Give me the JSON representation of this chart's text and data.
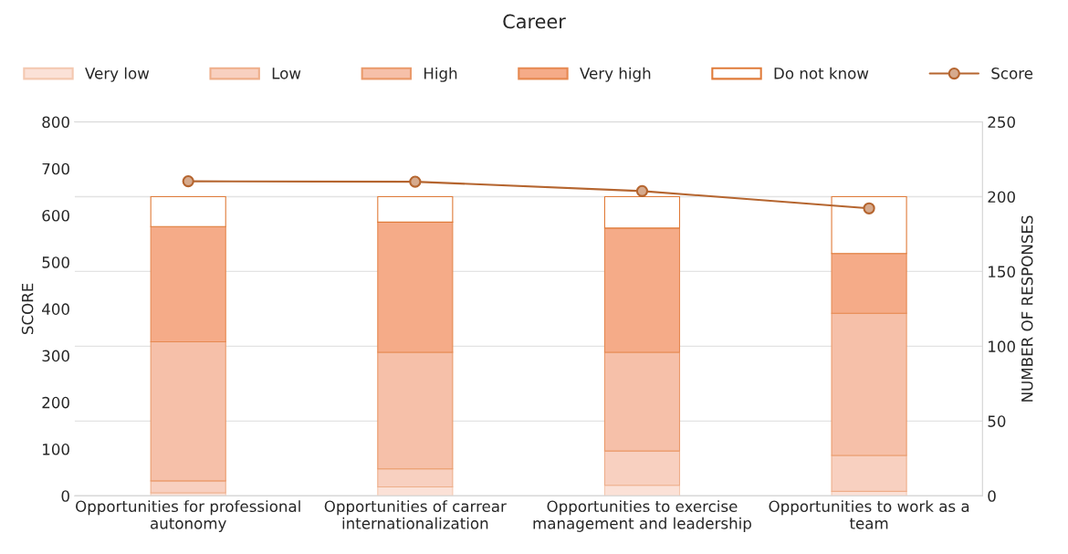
{
  "chart_data": {
    "type": "bar",
    "stacked": true,
    "title": "Career",
    "categories": [
      "Opportunities for professional autonomy",
      "Opportunities of carrear internationalization",
      "Opportunities to exercise management and leadership",
      "Opportunities to work as a team"
    ],
    "series": [
      {
        "name": "Very low",
        "color": "#fbe1d7",
        "axis": "y2",
        "values": [
          2,
          6,
          7,
          3
        ]
      },
      {
        "name": "Low",
        "color": "#f8d0c0",
        "axis": "y2",
        "values": [
          8,
          12,
          23,
          24
        ]
      },
      {
        "name": "High",
        "color": "#f6c0a9",
        "axis": "y2",
        "values": [
          93,
          78,
          66,
          95
        ]
      },
      {
        "name": "Very high",
        "color": "#f5ab88",
        "axis": "y2",
        "values": [
          77,
          87,
          83,
          40
        ]
      },
      {
        "name": "Do not know",
        "color": "#ffffff",
        "axis": "y2",
        "values": [
          20,
          17,
          21,
          38
        ]
      },
      {
        "name": "Score",
        "type": "line",
        "color": "#b5652f",
        "marker": "circle",
        "values": [
          673,
          672,
          652,
          615
        ]
      }
    ],
    "ylabel": "SCORE",
    "y2label": "NUMBER OF RESPONSES",
    "ylim": [
      0,
      800
    ],
    "yticks": [
      0,
      100,
      200,
      300,
      400,
      500,
      600,
      700,
      800
    ],
    "y2lim": [
      0,
      250
    ],
    "y2ticks": [
      0,
      50,
      100,
      150,
      200,
      250
    ],
    "grid": "y",
    "legend": "top"
  }
}
